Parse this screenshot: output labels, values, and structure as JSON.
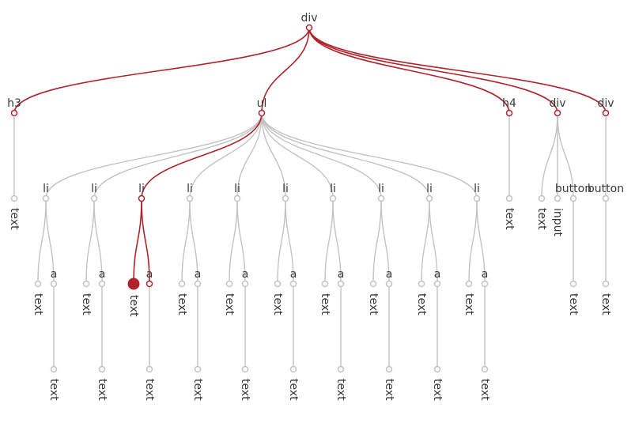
{
  "colors": {
    "active": "#b0232a",
    "inactive": "#c2c2c2",
    "label": "#3a3a3a",
    "background": "#ffffff"
  },
  "tree": {
    "label": "div",
    "active": true,
    "children": [
      {
        "label": "h3",
        "active": true,
        "children": [
          {
            "label": "text"
          }
        ]
      },
      {
        "label": "ul",
        "active": true,
        "children": [
          {
            "label": "li",
            "children": [
              {
                "label": "text"
              },
              {
                "label": "a",
                "children": [
                  {
                    "label": "text"
                  }
                ]
              }
            ]
          },
          {
            "label": "li",
            "children": [
              {
                "label": "text"
              },
              {
                "label": "a",
                "children": [
                  {
                    "label": "text"
                  }
                ]
              }
            ]
          },
          {
            "label": "li",
            "active": true,
            "children": [
              {
                "label": "text",
                "active": true,
                "selected": true
              },
              {
                "label": "a",
                "active": true,
                "children": [
                  {
                    "label": "text"
                  }
                ]
              }
            ]
          },
          {
            "label": "li",
            "children": [
              {
                "label": "text"
              },
              {
                "label": "a",
                "children": [
                  {
                    "label": "text"
                  }
                ]
              }
            ]
          },
          {
            "label": "li",
            "children": [
              {
                "label": "text"
              },
              {
                "label": "a",
                "children": [
                  {
                    "label": "text"
                  }
                ]
              }
            ]
          },
          {
            "label": "li",
            "children": [
              {
                "label": "text"
              },
              {
                "label": "a",
                "children": [
                  {
                    "label": "text"
                  }
                ]
              }
            ]
          },
          {
            "label": "li",
            "children": [
              {
                "label": "text"
              },
              {
                "label": "a",
                "children": [
                  {
                    "label": "text"
                  }
                ]
              }
            ]
          },
          {
            "label": "li",
            "children": [
              {
                "label": "text"
              },
              {
                "label": "a",
                "children": [
                  {
                    "label": "text"
                  }
                ]
              }
            ]
          },
          {
            "label": "li",
            "children": [
              {
                "label": "text"
              },
              {
                "label": "a",
                "children": [
                  {
                    "label": "text"
                  }
                ]
              }
            ]
          },
          {
            "label": "li",
            "children": [
              {
                "label": "text"
              },
              {
                "label": "a",
                "children": [
                  {
                    "label": "text"
                  }
                ]
              }
            ]
          }
        ]
      },
      {
        "label": "h4",
        "active": true,
        "children": [
          {
            "label": "text"
          }
        ]
      },
      {
        "label": "div",
        "active": true,
        "children": [
          {
            "label": "text"
          },
          {
            "label": "input"
          },
          {
            "label": "button",
            "children": [
              {
                "label": "text"
              }
            ]
          }
        ]
      },
      {
        "label": "div",
        "active": true,
        "children": [
          {
            "label": "button",
            "children": [
              {
                "label": "text"
              }
            ]
          }
        ]
      }
    ]
  }
}
